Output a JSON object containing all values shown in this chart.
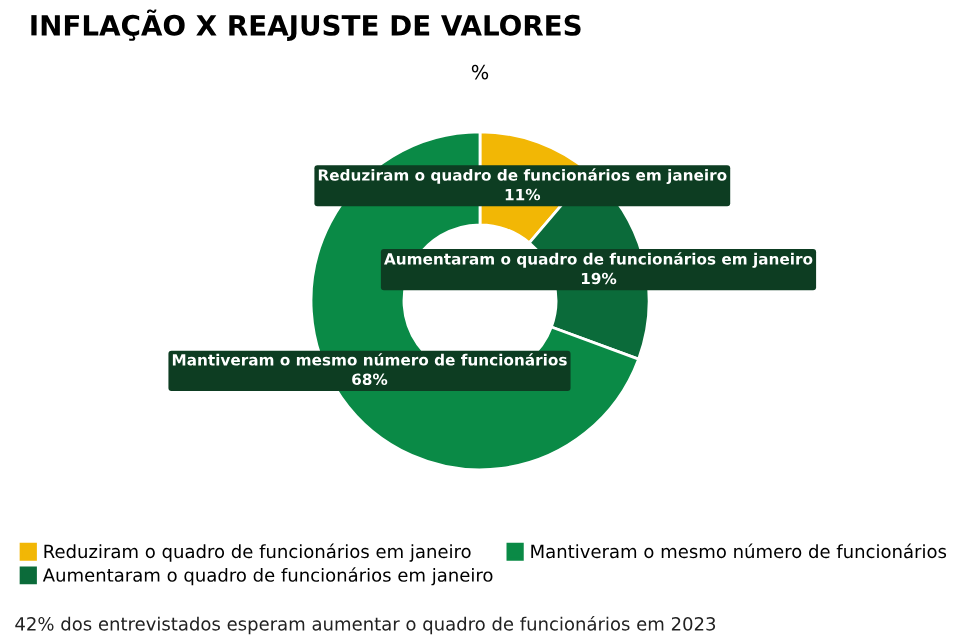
{
  "chart_data": {
    "type": "donut",
    "title": "INFLAÇÃO X REAJUSTE DE VALORES",
    "subtitle": "%",
    "categories": [
      "Reduziram o quadro de funcionários em janeiro",
      "Aumentaram o quadro de funcionários em janeiro",
      "Mantiveram o mesmo número de funcionários"
    ],
    "values": [
      11,
      19,
      68
    ],
    "value_labels": [
      "11%",
      "19%",
      "68%"
    ],
    "colors": [
      "#f2b705",
      "#0b6b3a",
      "#0a8a46"
    ],
    "data_labels": true,
    "legend": "bottom",
    "annotations": [
      "42% dos entrevistados esperam aumentar o quadro de funcionários em 2023"
    ]
  }
}
